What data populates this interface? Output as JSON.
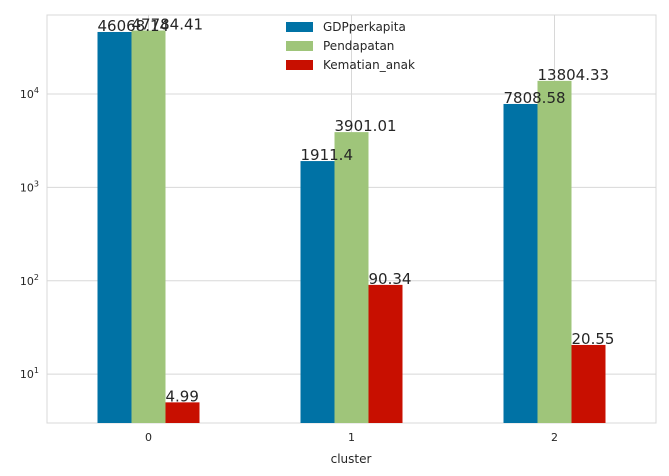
{
  "chart_data": {
    "type": "bar",
    "categories": [
      "0",
      "1",
      "2"
    ],
    "xlabel": "cluster",
    "ylabel": "",
    "yscale": "log",
    "ylim": [
      3.0,
      70000
    ],
    "y_ticks": [
      10,
      100,
      1000,
      10000
    ],
    "y_tick_labels": [
      {
        "base": "10",
        "exp": "1"
      },
      {
        "base": "10",
        "exp": "2"
      },
      {
        "base": "10",
        "exp": "3"
      },
      {
        "base": "10",
        "exp": "4"
      }
    ],
    "grid": true,
    "legend_position": "top-center",
    "series": [
      {
        "name": "GDPperkapita",
        "color": "#0072A5",
        "values": [
          46068.14,
          1911.4,
          7808.58
        ],
        "labels": [
          "46068.14",
          "1911.4",
          "7808.58"
        ]
      },
      {
        "name": "Pendapatan",
        "color": "#9FC57A",
        "values": [
          47784.41,
          3901.01,
          13804.33
        ],
        "labels": [
          "47784.41",
          "3901.01",
          "13804.33"
        ]
      },
      {
        "name": "Kematian_anak",
        "color": "#C80F00",
        "values": [
          4.99,
          90.34,
          20.55
        ],
        "labels": [
          "4.99",
          "90.34",
          "20.55"
        ]
      }
    ]
  }
}
